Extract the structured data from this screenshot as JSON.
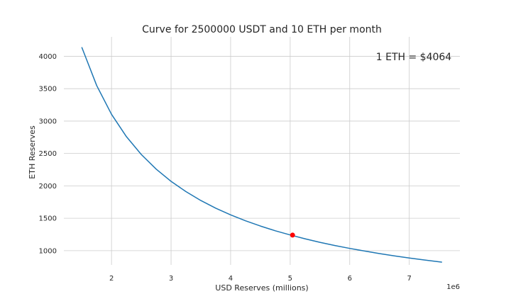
{
  "chart_data": {
    "type": "line",
    "title": "Curve for 2500000 USDT and 10 ETH per month",
    "xlabel": "USD Reserves (millions)",
    "ylabel": "ETH Reserves",
    "x_scale_label": "1e6",
    "annotation": "1 ETH = $4064",
    "xlim": [
      1.2,
      7.85
    ],
    "ylim": [
      780,
      4300
    ],
    "x_ticks": [
      2,
      3,
      4,
      5,
      6,
      7
    ],
    "y_ticks": [
      1000,
      1500,
      2000,
      2500,
      3000,
      3500,
      4000
    ],
    "grid": true,
    "series": [
      {
        "color": "#1f77b4",
        "x": [
          1.5,
          1.75,
          2.0,
          2.25,
          2.5,
          2.75,
          3.0,
          3.25,
          3.5,
          3.75,
          4.0,
          4.25,
          4.5,
          4.75,
          5.0,
          5.25,
          5.5,
          5.75,
          6.0,
          6.25,
          6.5,
          6.75,
          7.0,
          7.25,
          7.55
        ],
        "y": [
          4140,
          3549,
          3105,
          2760,
          2484,
          2258,
          2070,
          1911,
          1774,
          1656,
          1553,
          1461,
          1380,
          1307,
          1242,
          1183,
          1129,
          1080,
          1035,
          994,
          955,
          920,
          887,
          857,
          823
        ]
      }
    ],
    "highlight_point": {
      "x": 5.04,
      "y": 1240,
      "color": "#ff0000"
    }
  }
}
